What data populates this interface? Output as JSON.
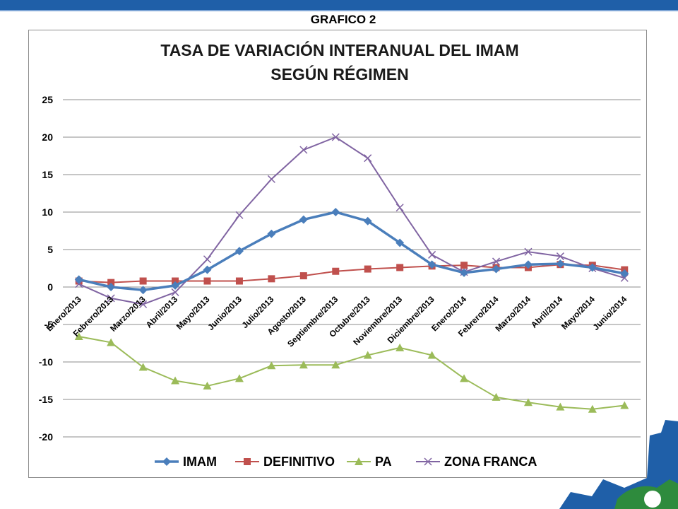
{
  "header": {
    "slide_title": "GRAFICO 2",
    "bar_color": "#1f5fa8"
  },
  "chart_data": {
    "type": "line",
    "title": [
      "TASA DE VARIACIÓN INTERANUAL DEL IMAM",
      "SEGÚN RÉGIMEN"
    ],
    "categories": [
      "Enero/2013",
      "Febrero/2013",
      "Marzo/2013",
      "Abril/2013",
      "Mayo/2013",
      "Junio/2013",
      "Julio/2013",
      "Agosto/2013",
      "Septiembre/2013",
      "Octubre/2013",
      "Noviembre/2013",
      "Diciembre/2013",
      "Enero/2014",
      "Febrero/2014",
      "Marzo/2014",
      "Abril/2014",
      "Mayo/2014",
      "Junio/2014"
    ],
    "ylim": [
      -20,
      25
    ],
    "yticks": [
      25,
      20,
      15,
      10,
      5,
      0,
      -5,
      -10,
      -15,
      -20
    ],
    "grid": true,
    "legend_position": "bottom",
    "series": [
      {
        "name": "IMAM",
        "color": "#4a7ebb",
        "marker": "diamond",
        "values": [
          1.0,
          0.0,
          -0.4,
          0.2,
          2.3,
          4.8,
          7.1,
          9.0,
          10.0,
          8.8,
          5.9,
          3.0,
          1.9,
          2.4,
          3.0,
          3.1,
          2.6,
          1.8
        ]
      },
      {
        "name": "DEFINITIVO",
        "color": "#c0504d",
        "marker": "square",
        "values": [
          0.8,
          0.6,
          0.8,
          0.8,
          0.8,
          0.8,
          1.1,
          1.5,
          2.1,
          2.4,
          2.6,
          2.8,
          2.9,
          2.6,
          2.6,
          3.0,
          2.9,
          2.3
        ]
      },
      {
        "name": "PA",
        "color": "#9bbb59",
        "marker": "triangle",
        "values": [
          -6.6,
          -7.4,
          -10.7,
          -12.5,
          -13.2,
          -12.2,
          -10.5,
          -10.4,
          -10.4,
          -9.1,
          -8.1,
          -9.1,
          -12.2,
          -14.7,
          -15.4,
          -16.0,
          -16.3,
          -15.8
        ]
      },
      {
        "name": "ZONA FRANCA",
        "color": "#8064a2",
        "marker": "x",
        "values": [
          0.4,
          -1.5,
          -2.3,
          -0.7,
          3.7,
          9.6,
          14.4,
          18.3,
          20.0,
          17.2,
          10.6,
          4.3,
          2.0,
          3.4,
          4.7,
          4.1,
          2.5,
          1.2
        ]
      }
    ]
  }
}
